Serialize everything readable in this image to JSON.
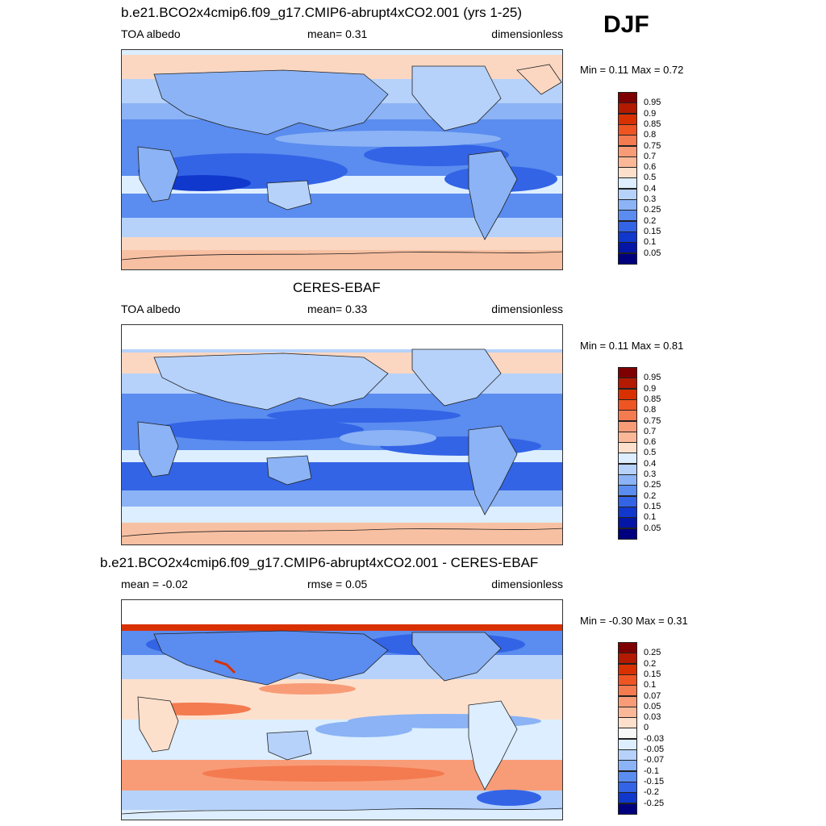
{
  "season": "DJF",
  "panels": [
    {
      "title": "b.e21.BCO2x4cmip6.f09_g17.CMIP6-abrupt4xCO2.001 (yrs 1-25)",
      "left_label": "TOA albedo",
      "center_label": "mean=   0.31",
      "right_label": "dimensionless",
      "minmax": "Min =   0.11 Max =   0.72",
      "colorbar": {
        "labels": [
          "0.95",
          "0.9",
          "0.85",
          "0.8",
          "0.75",
          "0.7",
          "0.6",
          "0.5",
          "0.4",
          "0.3",
          "0.25",
          "0.2",
          "0.15",
          "0.1",
          "0.05"
        ],
        "colors": [
          "#7f0000",
          "#b31a00",
          "#d93000",
          "#ee5522",
          "#f47a50",
          "#f89c77",
          "#fbb898",
          "#fde0cc",
          "#dceeff",
          "#b6d2fb",
          "#8bb3f5",
          "#5b8cef",
          "#3364e6",
          "#1138cc",
          "#0516a6",
          "#00007f"
        ]
      }
    },
    {
      "title": "CERES-EBAF",
      "left_label": "TOA albedo",
      "center_label": "mean=   0.33",
      "right_label": "dimensionless",
      "minmax": "Min =   0.11 Max =   0.81",
      "colorbar": {
        "labels": [
          "0.95",
          "0.9",
          "0.85",
          "0.8",
          "0.75",
          "0.7",
          "0.6",
          "0.5",
          "0.4",
          "0.3",
          "0.25",
          "0.2",
          "0.15",
          "0.1",
          "0.05"
        ],
        "colors": [
          "#7f0000",
          "#b31a00",
          "#d93000",
          "#ee5522",
          "#f47a50",
          "#f89c77",
          "#fbb898",
          "#fde0cc",
          "#dceeff",
          "#b6d2fb",
          "#8bb3f5",
          "#5b8cef",
          "#3364e6",
          "#1138cc",
          "#0516a6",
          "#00007f"
        ]
      }
    },
    {
      "title": "b.e21.BCO2x4cmip6.f09_g17.CMIP6-abrupt4xCO2.001 - CERES-EBAF",
      "left_label": "mean =  -0.02",
      "center_label": "rmse =   0.05",
      "right_label": "dimensionless",
      "minmax": "Min =  -0.30 Max =   0.31",
      "colorbar": {
        "labels": [
          "0.25",
          "0.2",
          "0.15",
          "0.1",
          "0.07",
          "0.05",
          "0.03",
          "0",
          "-0.03",
          "-0.05",
          "-0.07",
          "-0.1",
          "-0.15",
          "-0.2",
          "-0.25"
        ],
        "colors": [
          "#7f0000",
          "#b31a00",
          "#d93000",
          "#ee5522",
          "#f47a50",
          "#f89c77",
          "#fbb898",
          "#fde0cc",
          "#f7f7f7",
          "#dceeff",
          "#b6d2fb",
          "#8bb3f5",
          "#5b8cef",
          "#3364e6",
          "#1138cc",
          "#00007f"
        ]
      }
    }
  ]
}
